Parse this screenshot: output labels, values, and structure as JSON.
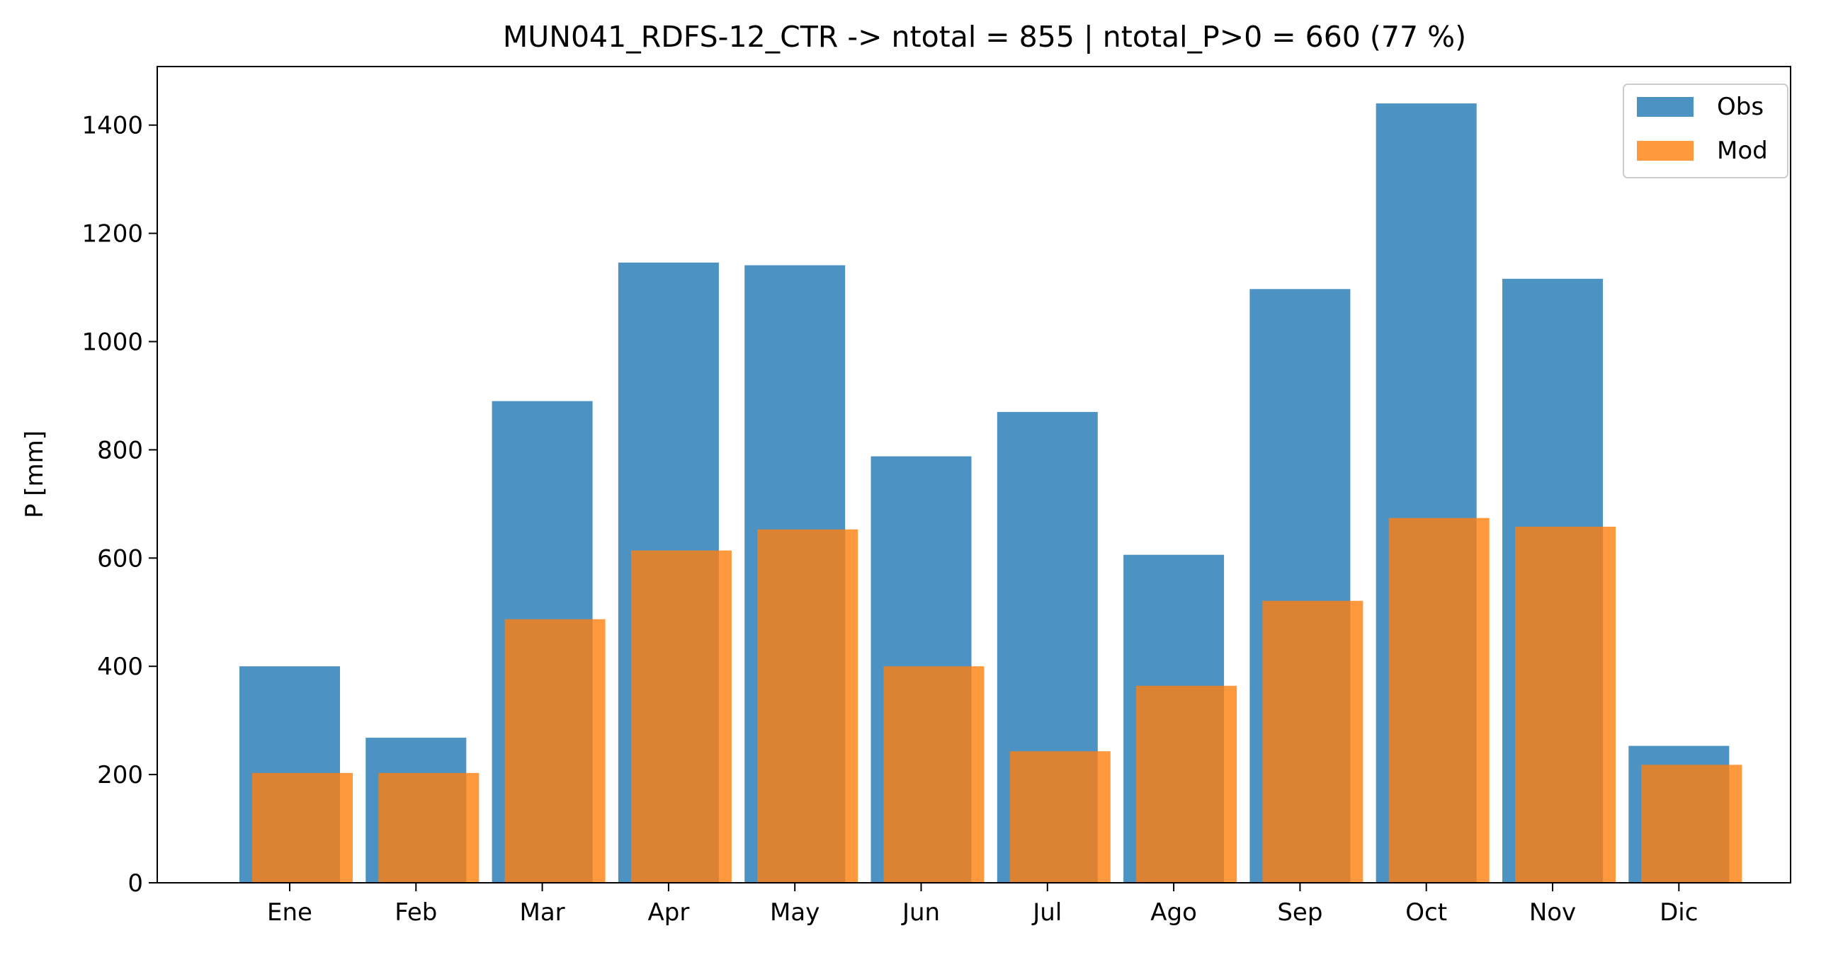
{
  "chart_data": {
    "type": "bar",
    "title": "MUN041_RDFS-12_CTR -> ntotal = 855 | ntotal_P>0 = 660 (77 %)",
    "xlabel": "",
    "ylabel": "P [mm]",
    "categories": [
      "Ene",
      "Feb",
      "Mar",
      "Apr",
      "May",
      "Jun",
      "Jul",
      "Ago",
      "Sep",
      "Oct",
      "Nov",
      "Dic"
    ],
    "series": [
      {
        "name": "Obs",
        "color": "#1f77b4",
        "values": [
          400,
          268,
          890,
          1146,
          1141,
          788,
          870,
          606,
          1097,
          1440,
          1116,
          253
        ]
      },
      {
        "name": "Mod",
        "color": "#ff7f0e",
        "values": [
          203,
          203,
          487,
          614,
          653,
          400,
          243,
          364,
          521,
          674,
          658,
          218
        ]
      }
    ],
    "ylim": [
      0,
      1512
    ],
    "yticks": [
      0,
      200,
      400,
      600,
      800,
      1000,
      1200,
      1400
    ],
    "grid": false,
    "legend_position": "top-right"
  }
}
